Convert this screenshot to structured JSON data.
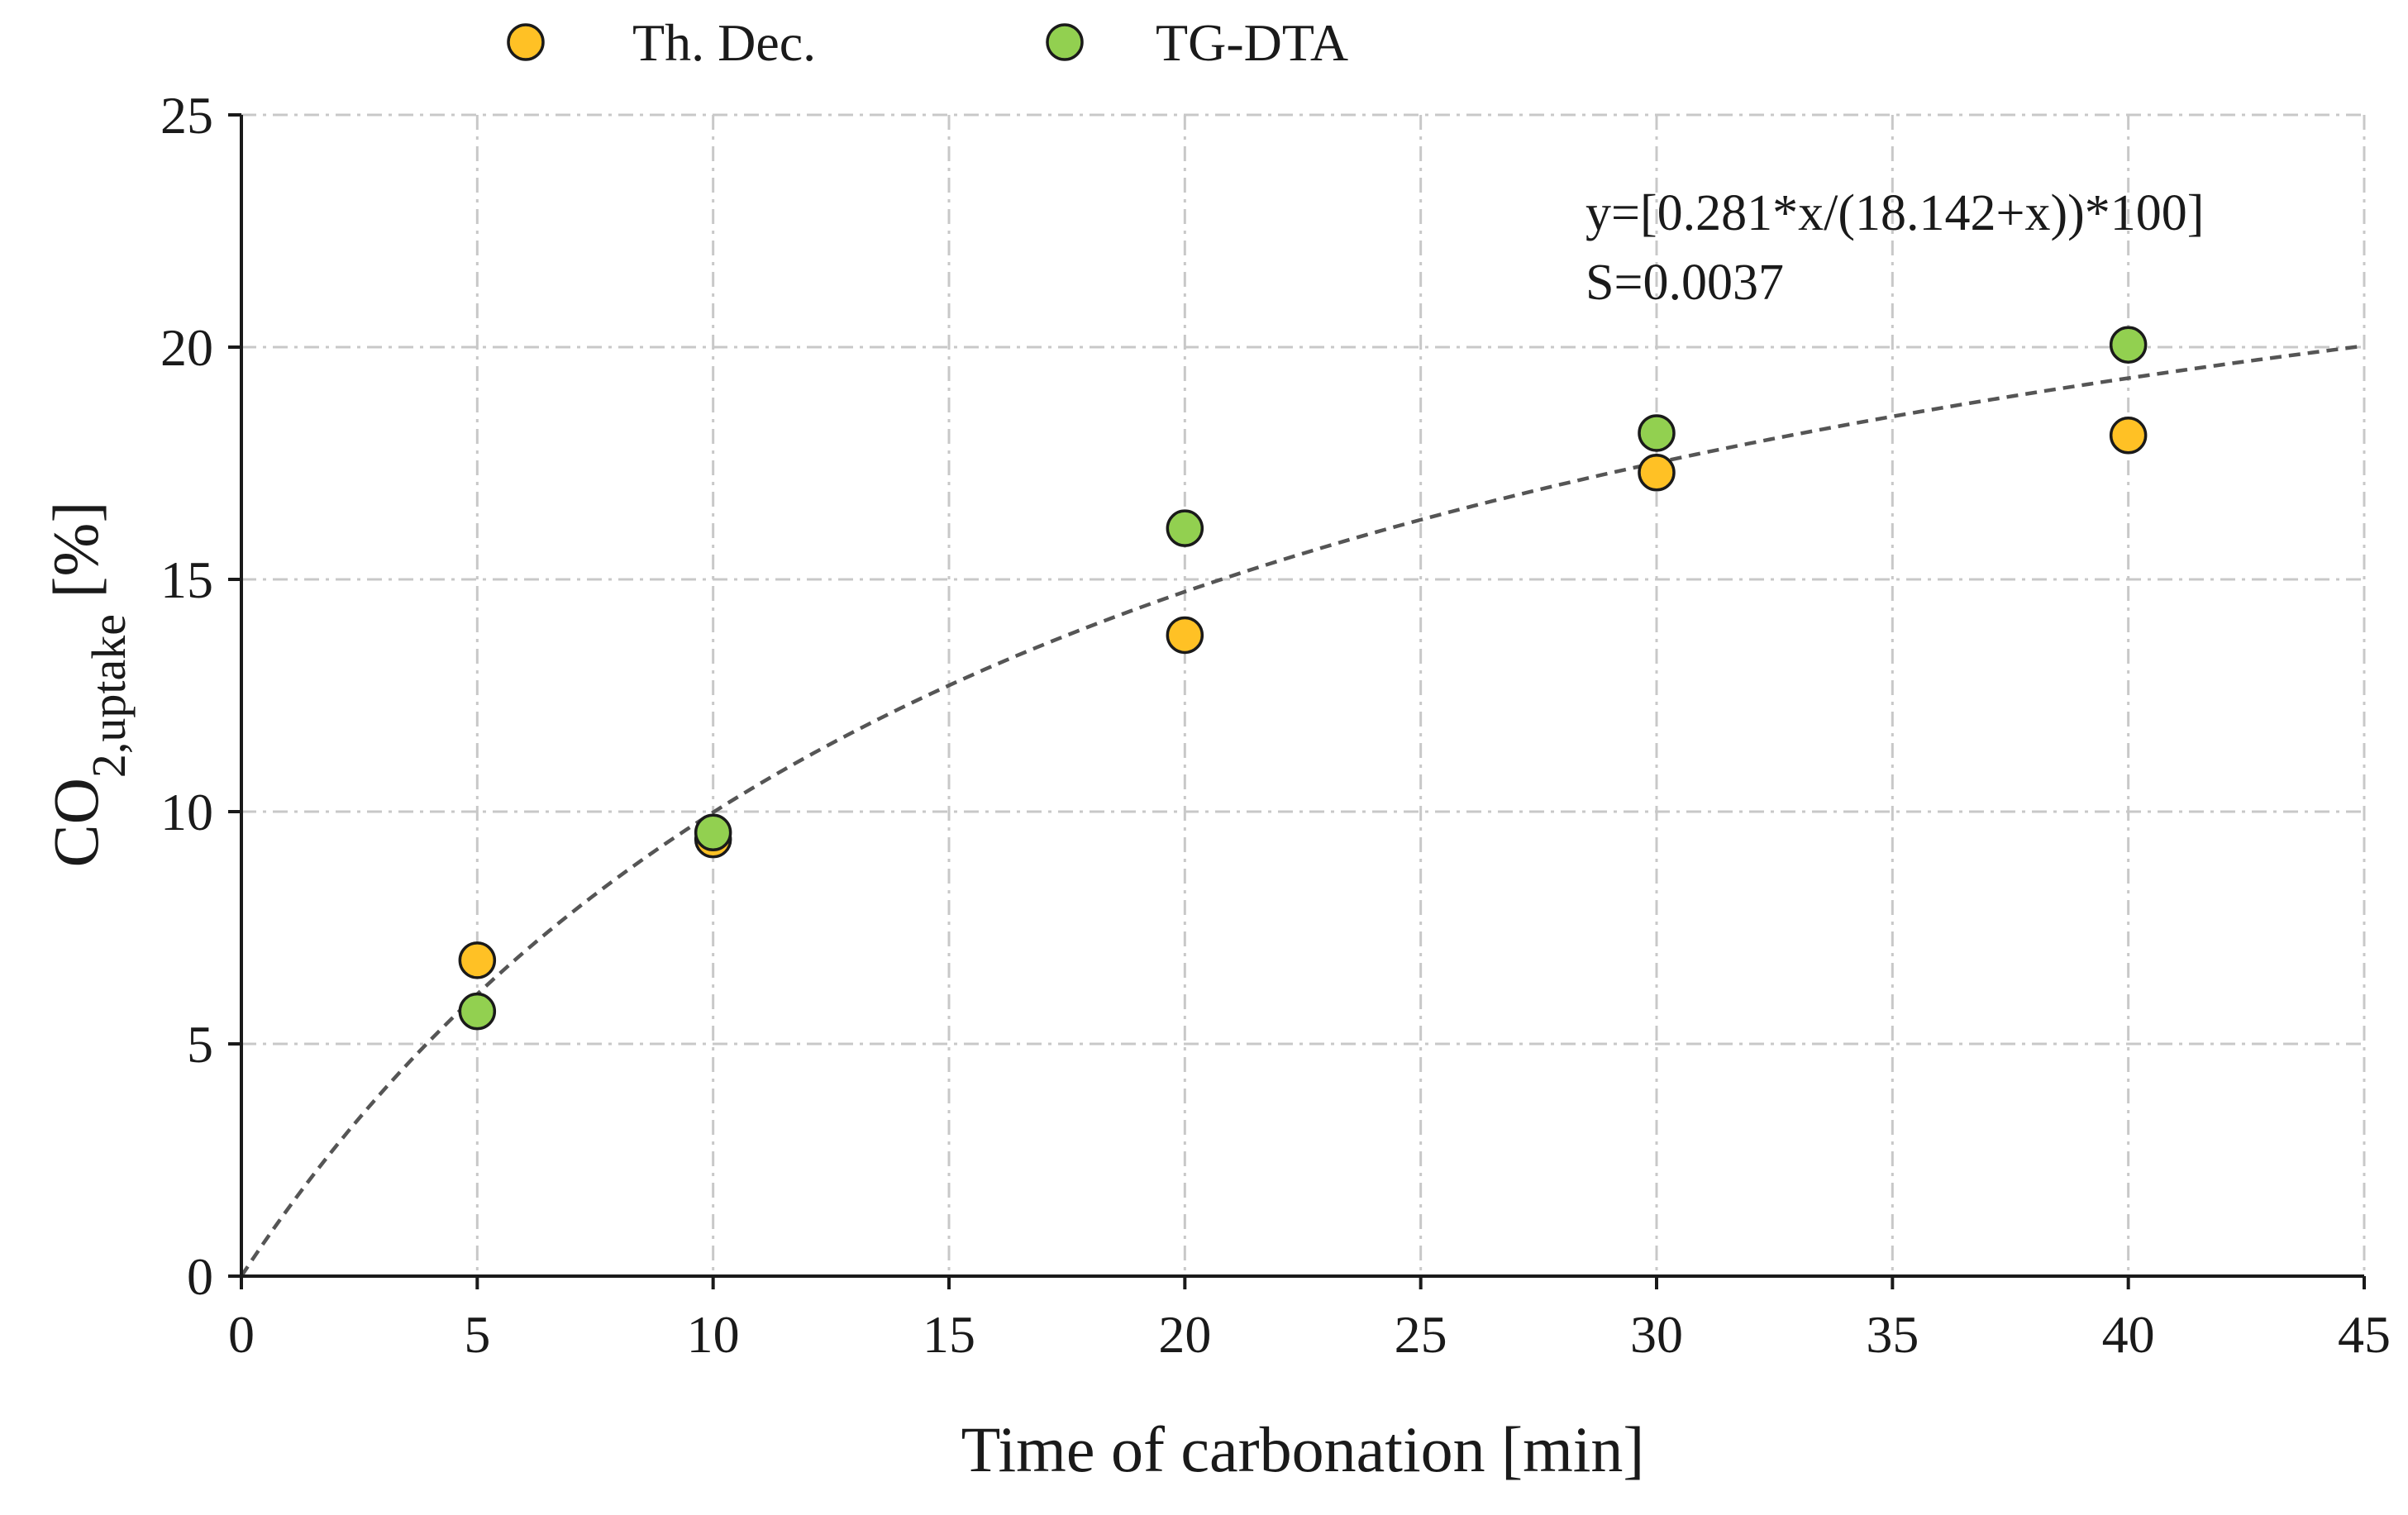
{
  "chart_data": {
    "type": "scatter",
    "title": "",
    "xlabel": "Time of carbonation [min]",
    "ylabel_main": "CO",
    "ylabel_sub": "2,uptake",
    "ylabel_unit": " [%]",
    "xlim": [
      0,
      45
    ],
    "ylim": [
      0,
      25
    ],
    "xticks": [
      0,
      5,
      10,
      15,
      20,
      25,
      30,
      35,
      40,
      45
    ],
    "yticks": [
      0,
      5,
      10,
      15,
      20,
      25
    ],
    "grid": true,
    "legend_position": "top",
    "series": [
      {
        "name": "Th. Dec.",
        "color": "#FFC125",
        "x": [
          5,
          10,
          20,
          30,
          40
        ],
        "y": [
          6.8,
          9.4,
          13.8,
          17.3,
          18.1
        ]
      },
      {
        "name": "TG-DTA",
        "color": "#92D050",
        "x": [
          5,
          10,
          20,
          30,
          40
        ],
        "y": [
          5.7,
          9.55,
          16.1,
          18.15,
          20.05
        ]
      }
    ],
    "fit": {
      "equation": "y=[0.281*x/(18.142+x))*100]",
      "statistic": "S=0.0037",
      "a": 0.281,
      "b": 18.142,
      "color": "#555555"
    }
  }
}
